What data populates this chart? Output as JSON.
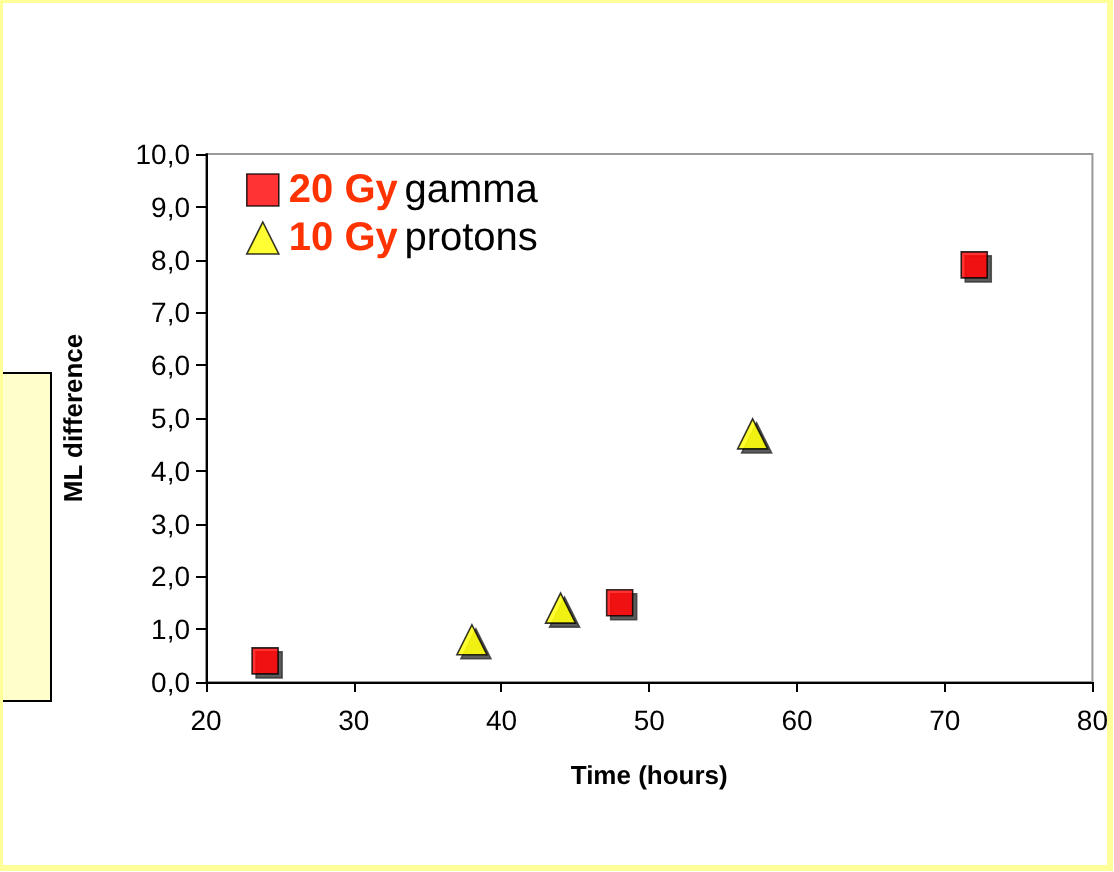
{
  "chart_data": {
    "type": "scatter",
    "xlabel": "Time (hours)",
    "ylabel": "ML difference",
    "xlim": [
      20,
      80
    ],
    "xticks": [
      20,
      30,
      40,
      50,
      60,
      70,
      80
    ],
    "ylim": [
      0,
      10
    ],
    "yticks": [
      {
        "value": 0,
        "label": "0,0"
      },
      {
        "value": 1,
        "label": "1,0"
      },
      {
        "value": 2,
        "label": "2,0"
      },
      {
        "value": 3,
        "label": "3,0"
      },
      {
        "value": 4,
        "label": "4,0"
      },
      {
        "value": 5,
        "label": "5,0"
      },
      {
        "value": 6,
        "label": "6,0"
      },
      {
        "value": 7,
        "label": "7,0"
      },
      {
        "value": 8,
        "label": "8,0"
      },
      {
        "value": 9,
        "label": "9,0"
      },
      {
        "value": 10,
        "label": "10,0"
      }
    ],
    "series": [
      {
        "name": "20 Gy gamma",
        "color": "#ff0000",
        "marker": "square",
        "x": [
          24,
          48,
          72
        ],
        "values": [
          0.4,
          1.5,
          7.9
        ]
      },
      {
        "name": "10 Gy protons",
        "color": "#ffff00",
        "marker": "triangle",
        "x": [
          38,
          44,
          57
        ],
        "values": [
          0.8,
          1.4,
          4.7
        ]
      }
    ],
    "grid": false,
    "legend": "top left"
  }
}
